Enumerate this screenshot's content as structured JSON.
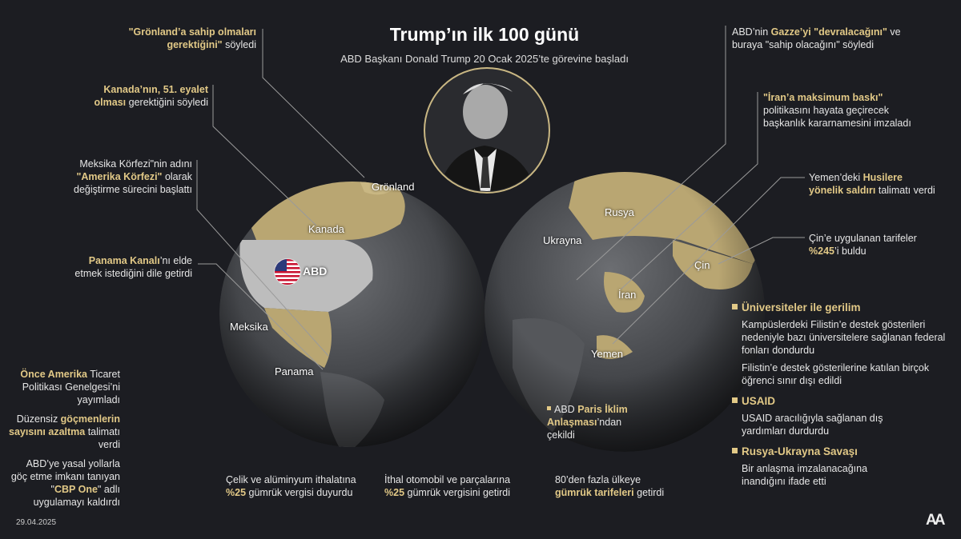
{
  "header": {
    "title": "Trump’ın ilk 100 günü",
    "subtitle": "ABD Başkanı Donald Trump 20 Ocak 2025’te görevine başladı"
  },
  "colors": {
    "background": "#1c1d22",
    "accent": "#e2c987",
    "text": "#e6e6e6"
  },
  "map_labels": {
    "gronland": "Grönland",
    "kanada": "Kanada",
    "abd": "ABD",
    "meksika": "Meksika",
    "panama": "Panama",
    "rusya": "Rusya",
    "ukrayna": "Ukrayna",
    "cin": "Çin",
    "iran": "İran",
    "yemen": "Yemen"
  },
  "notes": {
    "gronland": [
      {
        "t": "\"Grönland’a sahip olmaları gerektiğini\"",
        "hl": true
      },
      {
        "t": " söyledi",
        "hl": false
      }
    ],
    "kanada": [
      {
        "t": "Kanada’nın, 51. eyalet olması",
        "hl": true
      },
      {
        "t": " gerektiğini söyledi",
        "hl": false
      }
    ],
    "meksika": [
      {
        "t": "Meksika Körfezi\"nin adını ",
        "hl": false
      },
      {
        "t": "\"Amerika Körfezi\"",
        "hl": true
      },
      {
        "t": " olarak değiştirme sürecini başlattı",
        "hl": false
      }
    ],
    "panama": [
      {
        "t": "Panama Kanalı",
        "hl": true
      },
      {
        "t": "’nı elde etmek istediğini dile getirdi",
        "hl": false
      }
    ],
    "once_amerika": [
      {
        "t": "Önce Amerika",
        "hl": true
      },
      {
        "t": " Ticaret Politikası Genelgesi’ni yayımladı",
        "hl": false
      }
    ],
    "gocmen": [
      {
        "t": "Düzensiz ",
        "hl": false
      },
      {
        "t": "göçmenlerin sayısını azaltma",
        "hl": true
      },
      {
        "t": " talimatı verdi",
        "hl": false
      }
    ],
    "cbp": [
      {
        "t": "ABD’ye yasal yollarla göç etme imkanı tanıyan \"",
        "hl": false
      },
      {
        "t": "CBP One",
        "hl": true
      },
      {
        "t": "\" adlı uygulamayı kaldırdı",
        "hl": false
      }
    ],
    "celik": [
      {
        "t": "Çelik ve alüminyum ithalatına ",
        "hl": false
      },
      {
        "t": "%25",
        "hl": true
      },
      {
        "t": " gümrük vergisi duyurdu",
        "hl": false
      }
    ],
    "otomobil": [
      {
        "t": "İthal otomobil ve parçalarına ",
        "hl": false
      },
      {
        "t": "%25",
        "hl": true
      },
      {
        "t": " gümrük vergisini getirdi",
        "hl": false
      }
    ],
    "paris": [
      {
        "t": "ABD ",
        "hl": false
      },
      {
        "t": "Paris İklim Anlaşması",
        "hl": true
      },
      {
        "t": "’ndan çekildi",
        "hl": false
      }
    ],
    "tarife": [
      {
        "t": "80’den fazla ülkeye ",
        "hl": false
      },
      {
        "t": "gümrük tarifeleri",
        "hl": true
      },
      {
        "t": " getirdi",
        "hl": false
      }
    ],
    "gazze": [
      {
        "t": "ABD’nin ",
        "hl": false
      },
      {
        "t": "Gazze’yi \"devralacağını\"",
        "hl": true
      },
      {
        "t": " ve buraya \"sahip olacağını\" söyledi",
        "hl": false
      }
    ],
    "iran": [
      {
        "t": "\"İran’a maksimum baskı\"",
        "hl": true
      },
      {
        "t": " politikasını hayata geçirecek başkanlık kararnamesini imzaladı",
        "hl": false
      }
    ],
    "yemen": [
      {
        "t": "Yemen’deki ",
        "hl": false
      },
      {
        "t": "Husilere yönelik saldırı",
        "hl": true
      },
      {
        "t": " talimatı verdi",
        "hl": false
      }
    ],
    "cin": [
      {
        "t": "Çin’e uygulanan tarifeler ",
        "hl": false
      },
      {
        "t": "%245",
        "hl": true
      },
      {
        "t": "’i buldu",
        "hl": false
      }
    ]
  },
  "sections": [
    {
      "heading": "Üniversiteler ile gerilim",
      "paragraphs": [
        "Kampüslerdeki Filistin’e destek gösterileri nedeniyle bazı üniversitelere sağlanan federal fonları dondurdu",
        "Filistin’e destek gösterilerine katılan birçok öğrenci sınır dışı edildi"
      ]
    },
    {
      "heading": "USAID",
      "paragraphs": [
        "USAID aracılığıyla sağlanan dış yardımları durdurdu"
      ]
    },
    {
      "heading": "Rusya-Ukrayna Savaşı",
      "paragraphs": [
        "Bir anlaşma imzalanacağına inandığını ifade etti"
      ]
    }
  ],
  "footer": {
    "date": "29.04.2025",
    "logo_text": "AA"
  },
  "icons": {
    "flag": "us-flag-icon",
    "portrait": "portrait-photo",
    "logo": "aa-logo-icon"
  }
}
